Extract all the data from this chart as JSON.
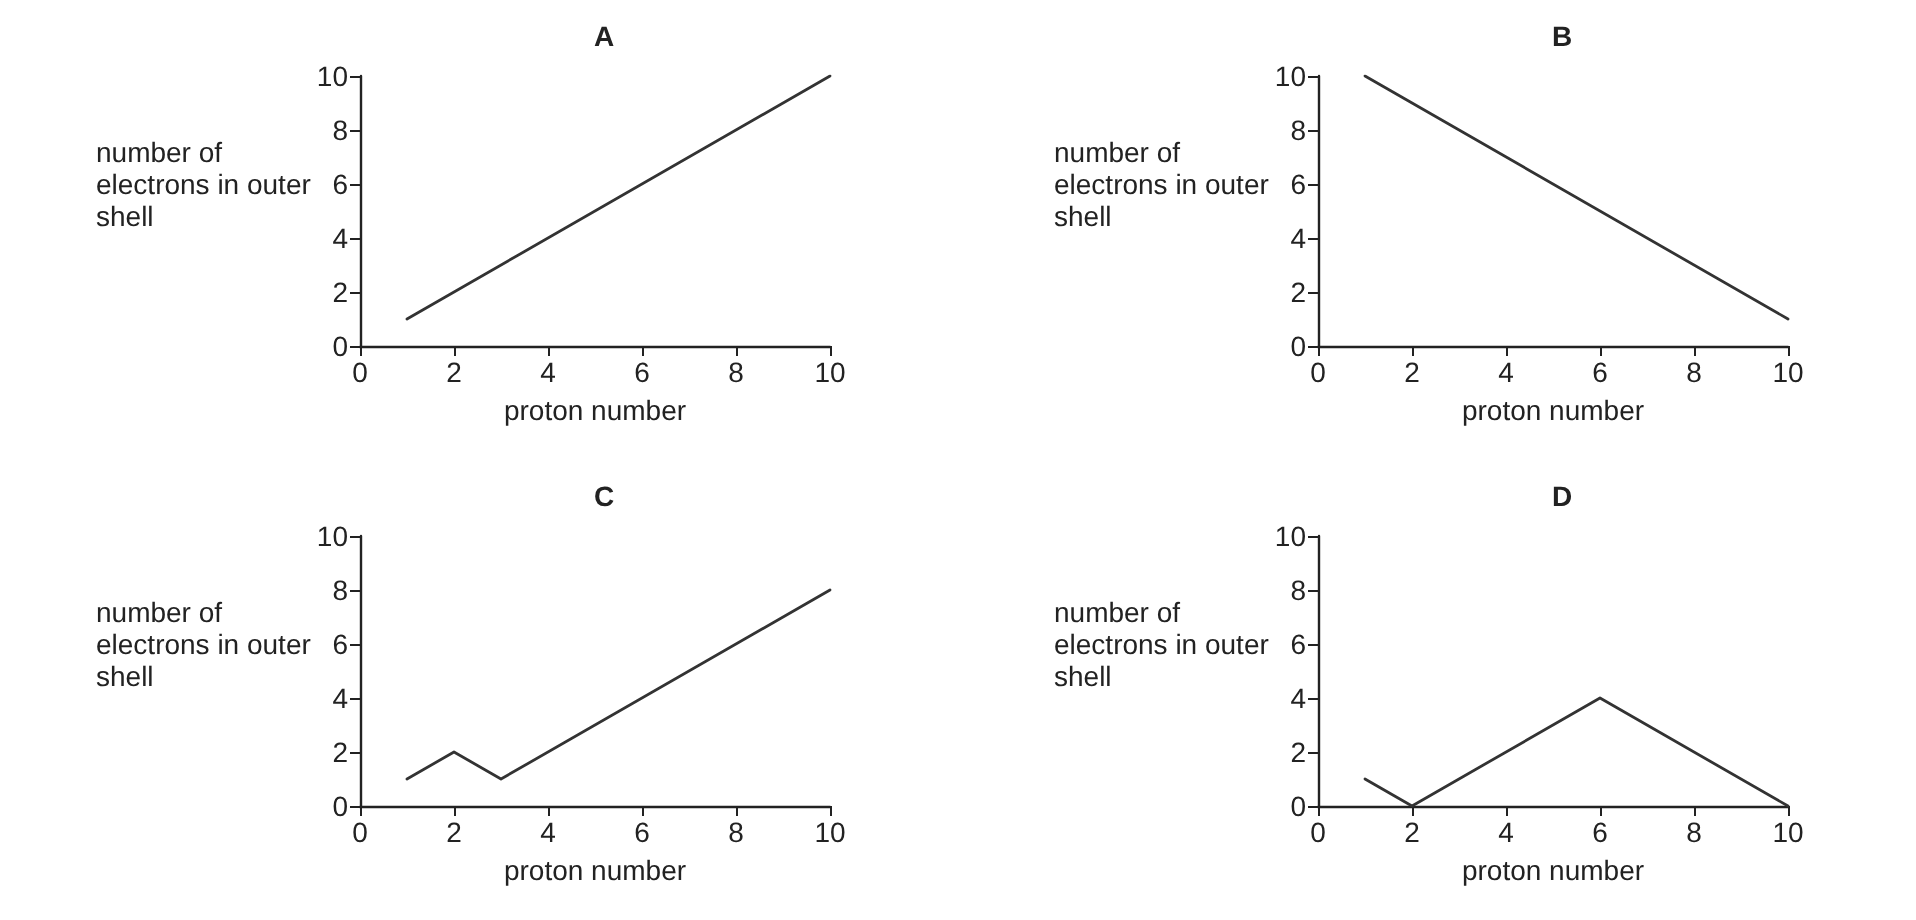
{
  "chart_data": [
    {
      "type": "line",
      "title": "A",
      "xlabel": "proton number",
      "ylabel": "number of electrons in outer shell",
      "x": [
        1,
        10
      ],
      "series": [
        {
          "color": "#333333",
          "values": [
            1,
            10
          ]
        }
      ],
      "xlim": [
        0,
        10
      ],
      "xticks": [
        0,
        2,
        4,
        6,
        8,
        10
      ],
      "ylim": [
        0,
        10
      ],
      "yticks": [
        0,
        2,
        4,
        6,
        8,
        10
      ],
      "marker": "none"
    },
    {
      "type": "line",
      "title": "B",
      "xlabel": "proton number",
      "ylabel": "number of electrons in outer shell",
      "x": [
        1,
        10
      ],
      "series": [
        {
          "color": "#333333",
          "values": [
            10,
            1
          ]
        }
      ],
      "xlim": [
        0,
        10
      ],
      "xticks": [
        0,
        2,
        4,
        6,
        8,
        10
      ],
      "ylim": [
        0,
        10
      ],
      "yticks": [
        0,
        2,
        4,
        6,
        8,
        10
      ],
      "marker": "none"
    },
    {
      "type": "line",
      "title": "C",
      "xlabel": "proton number",
      "ylabel": "number of electrons in outer shell",
      "x": [
        1,
        2,
        3,
        10
      ],
      "series": [
        {
          "color": "#333333",
          "values": [
            1,
            2,
            1,
            8
          ]
        }
      ],
      "xlim": [
        0,
        10
      ],
      "xticks": [
        0,
        2,
        4,
        6,
        8,
        10
      ],
      "ylim": [
        0,
        10
      ],
      "yticks": [
        0,
        2,
        4,
        6,
        8,
        10
      ],
      "marker": "none"
    },
    {
      "type": "line",
      "title": "D",
      "xlabel": "proton number",
      "ylabel": "number of electrons in outer shell",
      "x": [
        1,
        2,
        6,
        10
      ],
      "series": [
        {
          "color": "#333333",
          "values": [
            1,
            0,
            4,
            0
          ]
        }
      ],
      "xlim": [
        0,
        10
      ],
      "xticks": [
        0,
        2,
        4,
        6,
        8,
        10
      ],
      "ylim": [
        0,
        10
      ],
      "yticks": [
        0,
        2,
        4,
        6,
        8,
        10
      ],
      "marker": "none"
    }
  ]
}
